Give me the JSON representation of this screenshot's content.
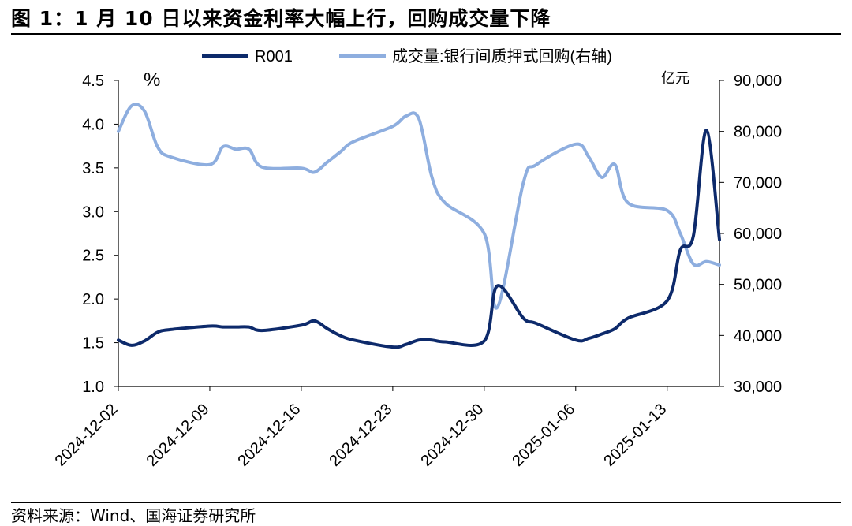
{
  "figure": {
    "title": "图 1：1 月 10 日以来资金利率大幅上行，回购成交量下降",
    "source": "资料来源：Wind、国海证券研究所"
  },
  "colors": {
    "r001": "#0d2a6b",
    "volume": "#8eaedf"
  },
  "chart_data": {
    "type": "line",
    "left_unit": "%",
    "right_unit": "亿元",
    "legend": [
      "R001",
      "成交量:银行间质押式回购(右轴)"
    ],
    "legend_position": "top",
    "grid": false,
    "y_left": {
      "lim": [
        1.0,
        4.5
      ],
      "ticks": [
        "1.0",
        "1.5",
        "2.0",
        "2.5",
        "3.0",
        "3.5",
        "4.0",
        "4.5"
      ]
    },
    "y_right": {
      "lim": [
        30000,
        90000
      ],
      "ticks": [
        "30,000",
        "40,000",
        "50,000",
        "60,000",
        "70,000",
        "80,000",
        "90,000"
      ]
    },
    "x_ticks": [
      "2024-12-02",
      "2024-12-09",
      "2024-12-16",
      "2024-12-23",
      "2024-12-30",
      "2025-01-06",
      "2025-01-13"
    ],
    "series": [
      {
        "name": "R001",
        "axis": "left",
        "points": [
          [
            "2024-12-02",
            1.53
          ],
          [
            "2024-12-03",
            1.47
          ],
          [
            "2024-12-04",
            1.52
          ],
          [
            "2024-12-05",
            1.62
          ],
          [
            "2024-12-06",
            1.65
          ],
          [
            "2024-12-09",
            1.69
          ],
          [
            "2024-12-10",
            1.68
          ],
          [
            "2024-12-11",
            1.68
          ],
          [
            "2024-12-12",
            1.68
          ],
          [
            "2024-12-13",
            1.64
          ],
          [
            "2024-12-16",
            1.7
          ],
          [
            "2024-12-17",
            1.75
          ],
          [
            "2024-12-18",
            1.66
          ],
          [
            "2024-12-19",
            1.58
          ],
          [
            "2024-12-20",
            1.53
          ],
          [
            "2024-12-23",
            1.45
          ],
          [
            "2024-12-24",
            1.48
          ],
          [
            "2024-12-25",
            1.53
          ],
          [
            "2024-12-26",
            1.53
          ],
          [
            "2024-12-27",
            1.51
          ],
          [
            "2024-12-30",
            1.52
          ],
          [
            "2024-12-31",
            2.15
          ],
          [
            "2025-01-02",
            1.78
          ],
          [
            "2025-01-03",
            1.72
          ],
          [
            "2025-01-06",
            1.53
          ],
          [
            "2025-01-07",
            1.55
          ],
          [
            "2025-01-08",
            1.6
          ],
          [
            "2025-01-09",
            1.66
          ],
          [
            "2025-01-10",
            1.78
          ],
          [
            "2025-01-13",
            1.98
          ],
          [
            "2025-01-14",
            2.56
          ],
          [
            "2025-01-15",
            2.72
          ],
          [
            "2025-01-16",
            3.93
          ],
          [
            "2025-01-17",
            2.68
          ]
        ]
      },
      {
        "name": "成交量:银行间质押式回购(右轴)",
        "axis": "right",
        "points": [
          [
            "2024-12-02",
            80000
          ],
          [
            "2024-12-03",
            85000
          ],
          [
            "2024-12-04",
            84000
          ],
          [
            "2024-12-05",
            77000
          ],
          [
            "2024-12-06",
            75000
          ],
          [
            "2024-12-09",
            73500
          ],
          [
            "2024-12-10",
            77000
          ],
          [
            "2024-12-11",
            76500
          ],
          [
            "2024-12-12",
            76500
          ],
          [
            "2024-12-13",
            73000
          ],
          [
            "2024-12-16",
            72800
          ],
          [
            "2024-12-17",
            72000
          ],
          [
            "2024-12-18",
            74000
          ],
          [
            "2024-12-19",
            76000
          ],
          [
            "2024-12-20",
            78000
          ],
          [
            "2024-12-23",
            81000
          ],
          [
            "2024-12-24",
            83000
          ],
          [
            "2024-12-25",
            82500
          ],
          [
            "2024-12-26",
            71000
          ],
          [
            "2024-12-27",
            66000
          ],
          [
            "2024-12-30",
            60000
          ],
          [
            "2024-12-31",
            45500
          ],
          [
            "2025-01-02",
            70000
          ],
          [
            "2025-01-03",
            73500
          ],
          [
            "2025-01-06",
            77500
          ],
          [
            "2025-01-07",
            75000
          ],
          [
            "2025-01-08",
            71000
          ],
          [
            "2025-01-09",
            73500
          ],
          [
            "2025-01-10",
            66000
          ],
          [
            "2025-01-13",
            64500
          ],
          [
            "2025-01-14",
            60000
          ],
          [
            "2025-01-15",
            54000
          ],
          [
            "2025-01-16",
            54500
          ],
          [
            "2025-01-17",
            53800
          ]
        ]
      }
    ]
  }
}
